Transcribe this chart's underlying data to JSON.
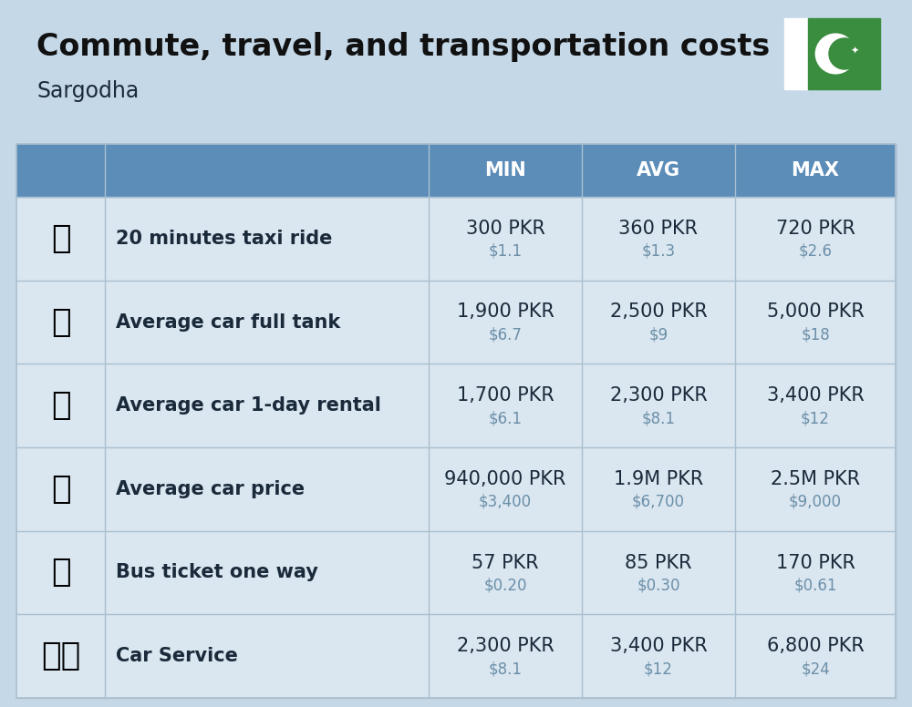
{
  "title": "Commute, travel, and transportation costs",
  "subtitle": "Sargodha",
  "bg_color": "#c5d8e8",
  "header_bg": "#5b8db8",
  "header_text_color": "#ffffff",
  "row_bg": "#cfdce8",
  "cell_bg": "#dae6f0",
  "separator_color": "#aabfcf",
  "columns": [
    "MIN",
    "AVG",
    "MAX"
  ],
  "rows": [
    {
      "label": "20 minutes taxi ride",
      "icon": "🚕",
      "min_pkr": "300 PKR",
      "min_usd": "$1.1",
      "avg_pkr": "360 PKR",
      "avg_usd": "$1.3",
      "max_pkr": "720 PKR",
      "max_usd": "$2.6"
    },
    {
      "label": "Average car full tank",
      "icon": "⛽",
      "min_pkr": "1,900 PKR",
      "min_usd": "$6.7",
      "avg_pkr": "2,500 PKR",
      "avg_usd": "$9",
      "max_pkr": "5,000 PKR",
      "max_usd": "$18"
    },
    {
      "label": "Average car 1-day rental",
      "icon": "🚙",
      "min_pkr": "1,700 PKR",
      "min_usd": "$6.1",
      "avg_pkr": "2,300 PKR",
      "avg_usd": "$8.1",
      "max_pkr": "3,400 PKR",
      "max_usd": "$12"
    },
    {
      "label": "Average car price",
      "icon": "🚗",
      "min_pkr": "940,000 PKR",
      "min_usd": "$3,400",
      "avg_pkr": "1.9M PKR",
      "avg_usd": "$6,700",
      "max_pkr": "2.5M PKR",
      "max_usd": "$9,000"
    },
    {
      "label": "Bus ticket one way",
      "icon": "🚌",
      "min_pkr": "57 PKR",
      "min_usd": "$0.20",
      "avg_pkr": "85 PKR",
      "avg_usd": "$0.30",
      "max_pkr": "170 PKR",
      "max_usd": "$0.61"
    },
    {
      "label": "Car Service",
      "icon": "🚗🔧",
      "min_pkr": "2,300 PKR",
      "min_usd": "$8.1",
      "avg_pkr": "3,400 PKR",
      "avg_usd": "$12",
      "max_pkr": "6,800 PKR",
      "max_usd": "$24"
    }
  ],
  "title_fontsize": 24,
  "subtitle_fontsize": 17,
  "header_fontsize": 15,
  "label_fontsize": 15,
  "value_fontsize": 15,
  "usd_fontsize": 12,
  "pkr_text_color": "#1a2a3a",
  "usd_text_color": "#6b8fa8",
  "flag_white": "#ffffff",
  "flag_green": "#3a8c3f"
}
